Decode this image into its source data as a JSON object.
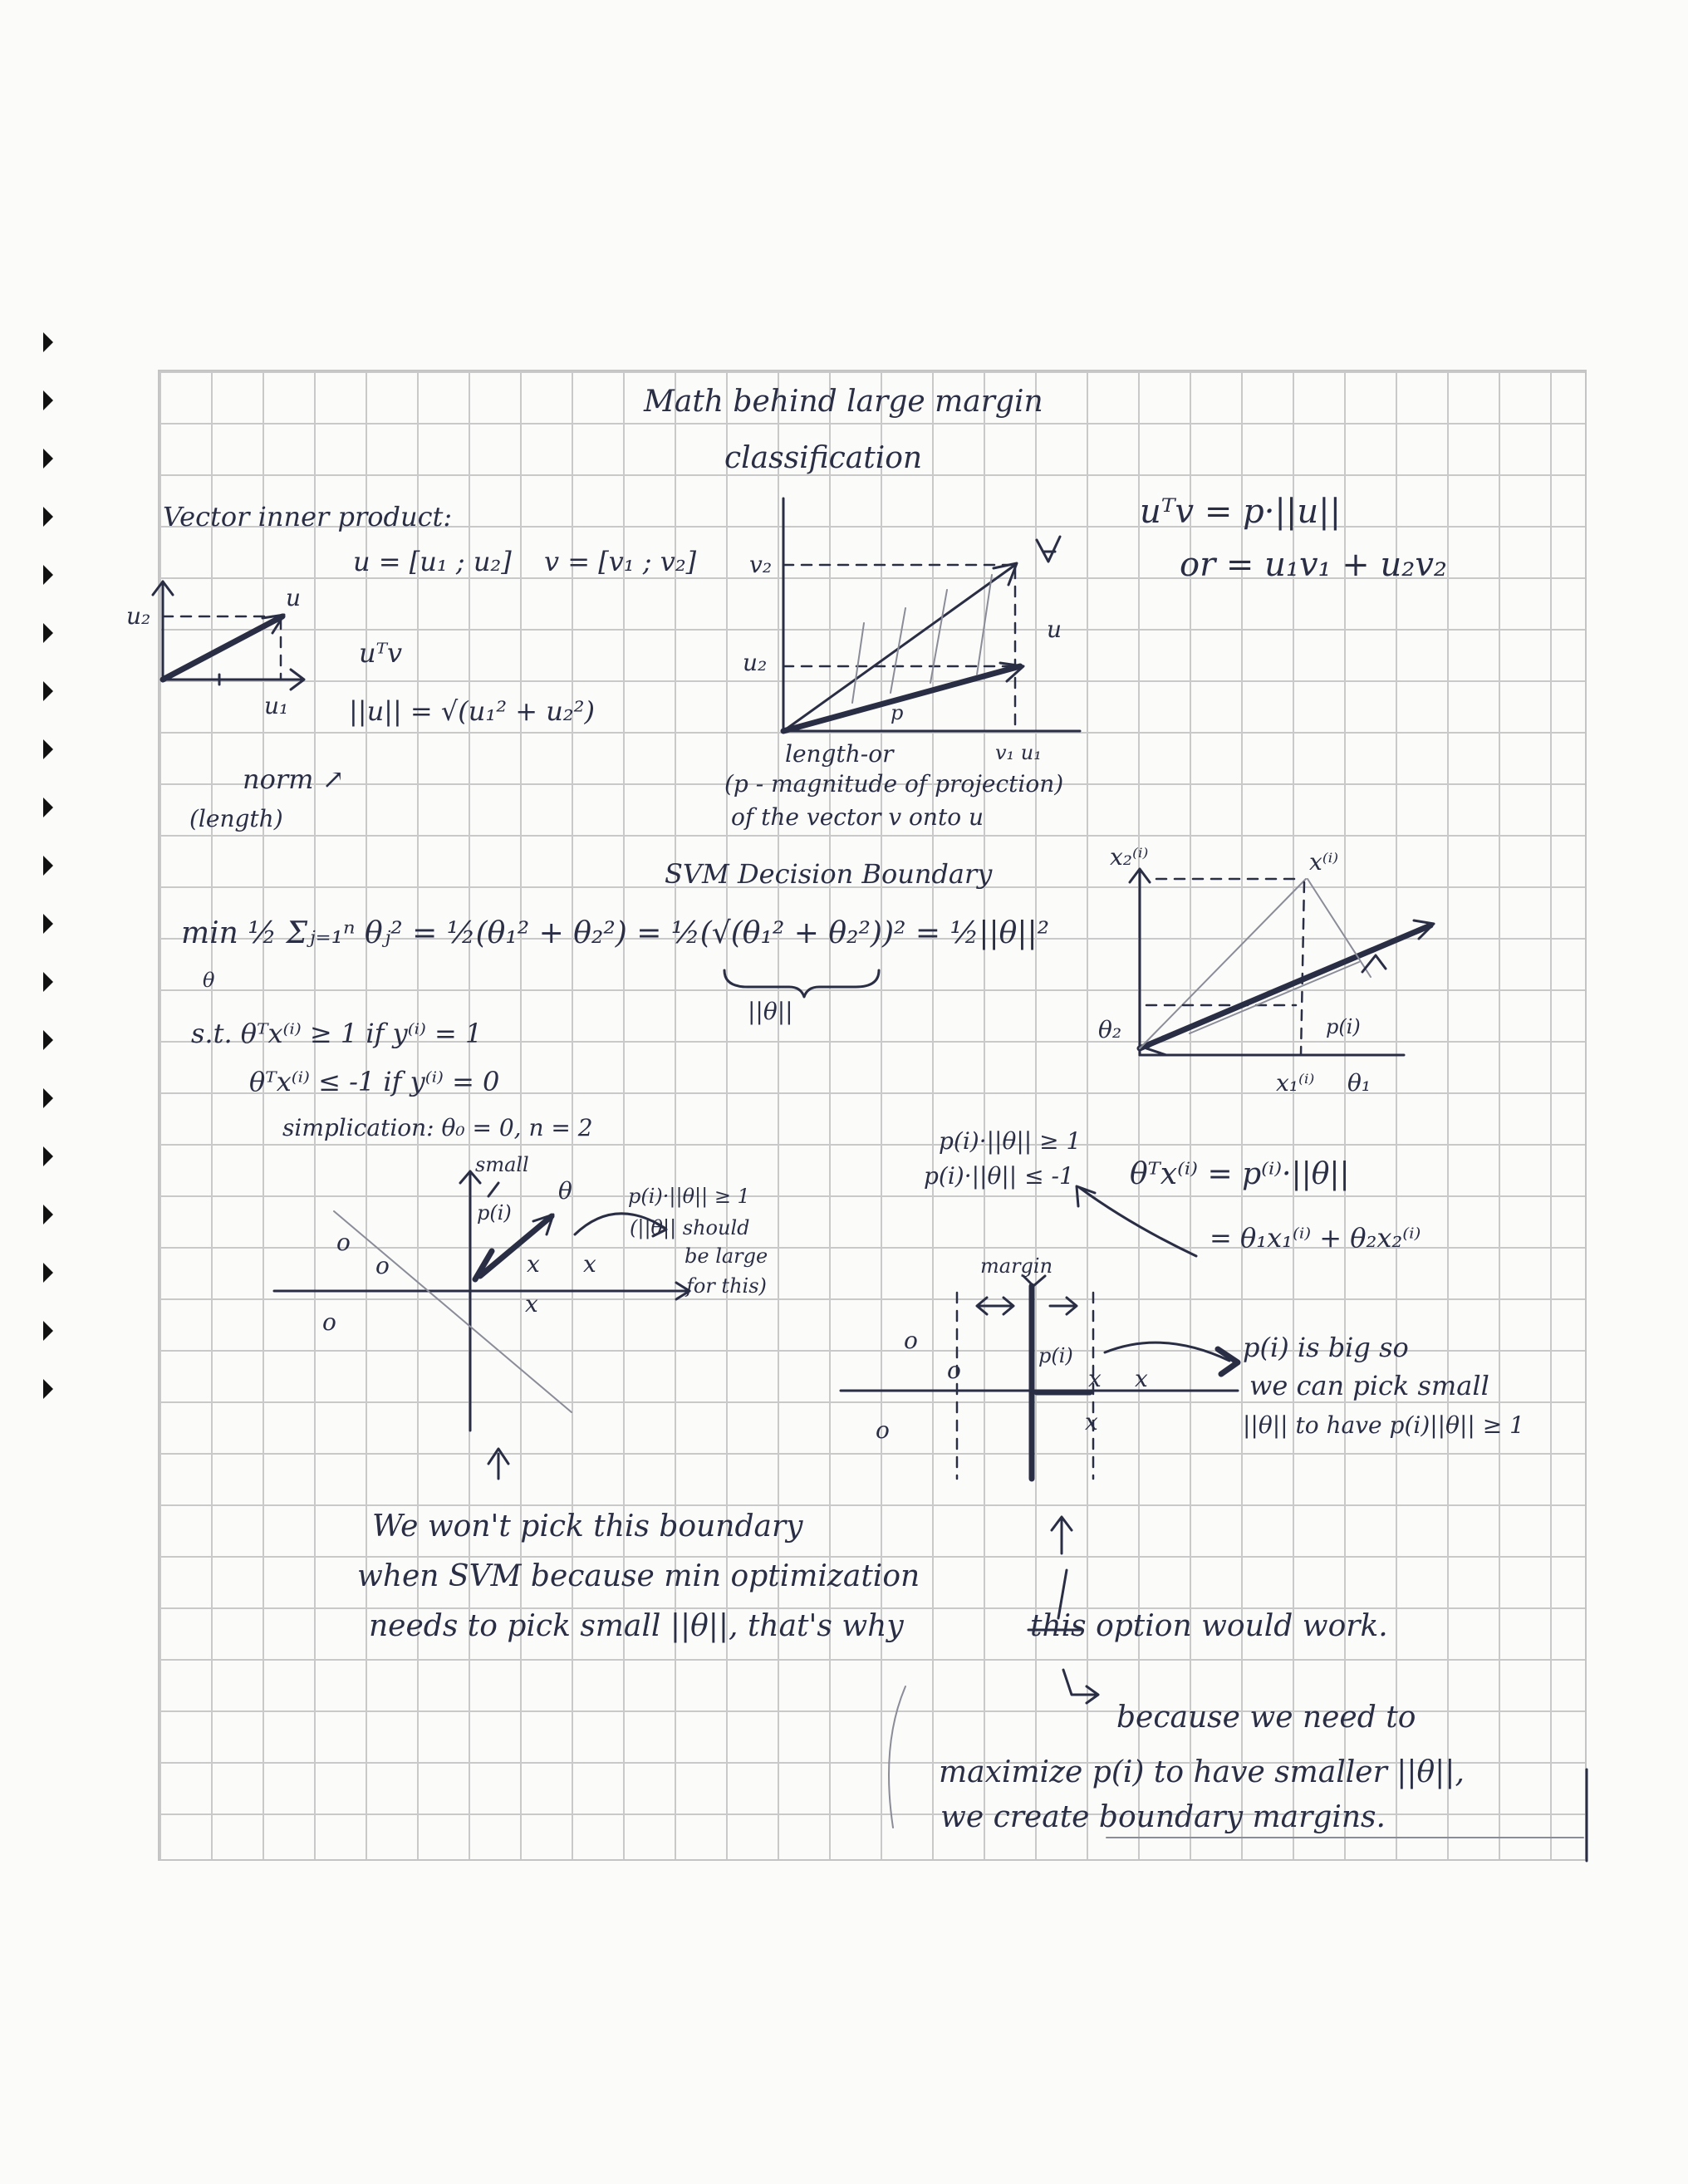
{
  "notes": {
    "title_line1": "Math behind large margin",
    "title_line2": "classification",
    "vector_inner_product_heading": "Vector inner product:",
    "u_vector": "u = [u₁ ; u₂]",
    "v_vector": "v = [v₁ ; v₂]",
    "uTv": "uᵀv",
    "norm_formula": "||u|| = √(u₁² + u₂²)",
    "norm_label": "norm ↗",
    "length_label": "(length)",
    "axis_u1": "u₁",
    "axis_u2": "u₂",
    "vec_u": "u",
    "axis_v2": "v₂",
    "axis_u2_b": "u₂",
    "vec_v": "v",
    "vec_u_b": "u",
    "proj_p": "p",
    "axis_v1_u1": "v₁ u₁",
    "uTv_eq_p": "uᵀv = p·||u||",
    "or_eq": "or = u₁v₁ + u₂v₂",
    "proj_note_line1": "length-or",
    "proj_note_line2": "(p - magnitude of projection)",
    "proj_note_line3": "of the vector v onto u",
    "svm_heading": "SVM Decision Boundary",
    "min_formula": "min ½ Σⱼ₌₁ⁿ θⱼ² = ½(θ₁² + θ₂²) = ½(√(θ₁² + θ₂²))² = ½||θ||²",
    "min_theta": "θ",
    "norm_theta_brace": "||θ||",
    "constraint1": "s.t. θᵀx⁽ⁱ⁾ ≥ 1   if y⁽ⁱ⁾ = 1",
    "constraint2": "θᵀx⁽ⁱ⁾ ≤ -1   if y⁽ⁱ⁾ = 0",
    "simplification": "simplication: θ₀ = 0, n = 2",
    "small_label": "small",
    "p_i_label": "p(i)",
    "theta_label": "θ",
    "left_note_line1": "p(i)·||θ|| ≥ 1",
    "left_note_line2": "(||θ|| should",
    "left_note_line3": "be large",
    "left_note_line4": "for this)",
    "x2i_label": "x₂⁽ⁱ⁾",
    "xi_label": "x⁽ⁱ⁾",
    "theta2_label": "θ₂",
    "pi_right_label": "p(i)",
    "x1i_label": "x₁⁽ⁱ⁾",
    "theta1_label": "θ₁",
    "cond1": "p(i)·||θ|| ≥ 1",
    "cond2": "p(i)·||θ|| ≤ -1",
    "thetaTx": "θᵀx⁽ⁱ⁾ = p⁽ⁱ⁾·||θ||",
    "thetaTx_expand": "= θ₁x₁⁽ⁱ⁾ + θ₂x₂⁽ⁱ⁾",
    "margin_label": "margin",
    "pi_mid_label": "p(i)",
    "big_note_line1": "p(i) is big so",
    "big_note_line2": "we can pick small",
    "big_note_line3": "||θ|| to have p(i)||θ|| ≥ 1",
    "bottom_note_line1": "We won't pick this boundary",
    "bottom_note_line2": "when SVM because min optimization",
    "bottom_note_line3": "needs to pick small ||θ||, that's why",
    "this_option": "this option would work.",
    "because_line1": "because we need to",
    "because_line2": "maximize p(i) to have smaller ||θ||,",
    "because_line3": "we create boundary margins.",
    "marker_o": "o",
    "marker_x": "x"
  }
}
